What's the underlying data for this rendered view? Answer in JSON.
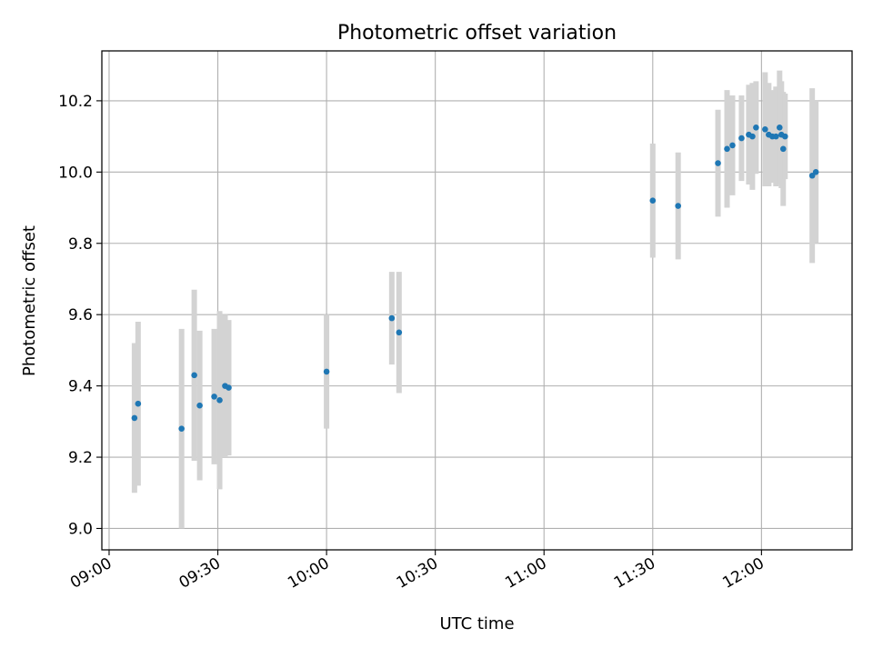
{
  "chart_data": {
    "type": "scatter",
    "title": "Photometric offset variation",
    "xlabel": "UTC time",
    "ylabel": "Photometric offset",
    "xlim": [
      "08:58:00",
      "12:25:00"
    ],
    "ylim": [
      8.94,
      10.34
    ],
    "x_ticks": [
      "09:00",
      "09:30",
      "10:00",
      "10:30",
      "11:00",
      "11:30",
      "12:00"
    ],
    "y_ticks": [
      "9.0",
      "9.2",
      "9.4",
      "9.6",
      "9.8",
      "10.0",
      "10.2"
    ],
    "grid": true,
    "series": [
      {
        "marker": "point",
        "error_bars": "vertical",
        "points": [
          {
            "x": "09:07",
            "y": 9.31,
            "err": 0.21
          },
          {
            "x": "09:08",
            "y": 9.35,
            "err": 0.23
          },
          {
            "x": "09:20",
            "y": 9.28,
            "err": 0.28
          },
          {
            "x": "09:23:30",
            "y": 9.43,
            "err": 0.24
          },
          {
            "x": "09:25",
            "y": 9.345,
            "err": 0.21
          },
          {
            "x": "09:29",
            "y": 9.37,
            "err": 0.19
          },
          {
            "x": "09:30:30",
            "y": 9.36,
            "err": 0.25
          },
          {
            "x": "09:32",
            "y": 9.4,
            "err": 0.2
          },
          {
            "x": "09:33",
            "y": 9.395,
            "err": 0.19
          },
          {
            "x": "10:00",
            "y": 9.44,
            "err": 0.16
          },
          {
            "x": "10:18",
            "y": 9.59,
            "err": 0.13
          },
          {
            "x": "10:20",
            "y": 9.55,
            "err": 0.17
          },
          {
            "x": "11:30",
            "y": 9.92,
            "err": 0.16
          },
          {
            "x": "11:37",
            "y": 9.905,
            "err": 0.15
          },
          {
            "x": "11:48",
            "y": 10.025,
            "err": 0.15
          },
          {
            "x": "11:50:30",
            "y": 10.065,
            "err": 0.165
          },
          {
            "x": "11:52",
            "y": 10.075,
            "err": 0.14
          },
          {
            "x": "11:54:30",
            "y": 10.095,
            "err": 0.12
          },
          {
            "x": "11:56:30",
            "y": 10.105,
            "err": 0.14
          },
          {
            "x": "11:57:30",
            "y": 10.1,
            "err": 0.15
          },
          {
            "x": "11:58:30",
            "y": 10.125,
            "err": 0.13
          },
          {
            "x": "12:01",
            "y": 10.12,
            "err": 0.16
          },
          {
            "x": "12:02",
            "y": 10.105,
            "err": 0.145
          },
          {
            "x": "12:03",
            "y": 10.1,
            "err": 0.13
          },
          {
            "x": "12:04",
            "y": 10.1,
            "err": 0.14
          },
          {
            "x": "12:05",
            "y": 10.125,
            "err": 0.16
          },
          {
            "x": "12:05:30",
            "y": 10.105,
            "err": 0.15
          },
          {
            "x": "12:06",
            "y": 10.065,
            "err": 0.16
          },
          {
            "x": "12:06:30",
            "y": 10.1,
            "err": 0.12
          },
          {
            "x": "12:14",
            "y": 9.99,
            "err": 0.245
          },
          {
            "x": "12:15",
            "y": 10.0,
            "err": 0.2
          }
        ]
      }
    ],
    "colors": {
      "marker": "#1f77b4",
      "error_bar": "#d3d3d3",
      "grid": "#b0b0b0",
      "axes": "#000000"
    }
  }
}
